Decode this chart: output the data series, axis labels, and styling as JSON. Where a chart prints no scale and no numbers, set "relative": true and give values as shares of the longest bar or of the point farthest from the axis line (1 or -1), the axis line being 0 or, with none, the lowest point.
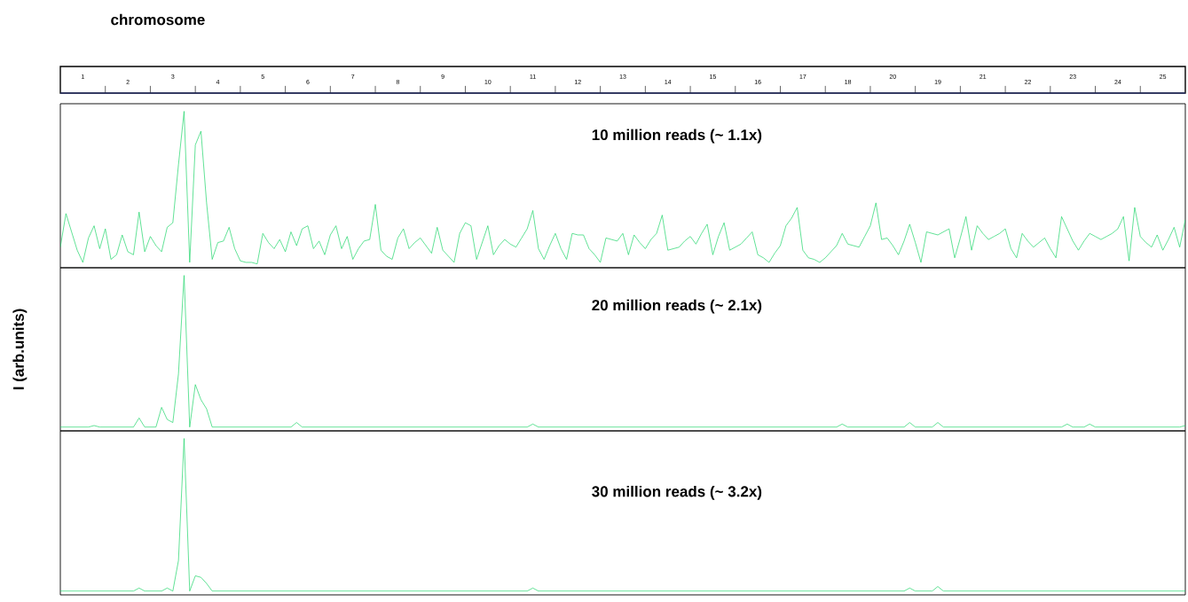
{
  "chart_data": [
    {
      "type": "other",
      "title": "chromosome",
      "annotations": [
        "1",
        "2",
        "3",
        "4",
        "5",
        "6",
        "7",
        "8",
        "9",
        "10",
        "11",
        "12",
        "13",
        "14",
        "15",
        "16",
        "17",
        "18",
        "20",
        "19",
        "21",
        "22",
        "23",
        "24",
        "25"
      ]
    },
    {
      "type": "line",
      "relative": true,
      "title": "10 million reads (~ 1.1x)",
      "marker": "none",
      "categories": [
        null,
        null,
        null,
        null,
        null,
        null,
        null,
        null,
        null,
        null,
        null,
        null,
        null,
        null,
        null,
        null,
        null,
        null,
        null,
        null,
        null,
        null,
        null,
        null,
        null,
        null,
        null,
        null,
        null,
        null,
        null,
        null,
        null,
        null,
        null,
        null,
        null,
        null,
        null,
        null,
        null,
        null,
        null,
        null,
        null,
        null,
        null,
        null,
        null,
        null,
        null,
        null,
        null,
        null,
        null,
        null,
        null,
        null,
        null,
        null,
        null,
        null,
        null,
        null,
        null,
        null,
        null,
        null,
        null,
        null,
        null,
        null,
        null,
        null,
        null,
        null,
        null,
        null,
        null,
        null,
        null,
        null,
        null,
        null,
        null,
        null,
        null,
        null,
        null,
        null,
        null,
        null,
        null,
        null,
        null,
        null,
        null,
        null,
        null,
        null,
        null,
        null,
        null,
        null,
        null,
        null,
        null,
        null,
        null,
        null,
        null,
        null,
        null,
        null,
        null,
        null,
        null,
        null,
        null,
        null,
        null,
        null,
        null,
        null,
        null,
        null,
        null,
        null,
        null,
        null,
        null,
        null,
        null,
        null,
        null,
        null,
        null,
        null,
        null,
        null,
        null,
        null,
        null,
        null,
        null,
        null,
        null,
        null,
        null,
        null,
        null,
        null,
        null,
        null,
        null,
        null,
        null,
        null,
        null,
        null,
        null,
        null,
        null,
        null,
        null,
        null,
        null,
        null,
        null,
        null,
        null,
        null,
        null,
        null,
        null,
        null,
        null,
        null,
        null,
        null,
        null,
        null,
        null,
        null,
        null,
        null,
        null,
        null,
        null,
        null,
        null,
        null,
        null,
        null,
        null,
        null,
        null,
        null,
        null,
        null,
        null
      ],
      "series": [
        {
          "color": "#1fd66a",
          "values": [
            0.11,
            0.33,
            0.21,
            0.09,
            0.01,
            0.17,
            0.25,
            0.1,
            0.23,
            0.03,
            0.06,
            0.19,
            0.08,
            0.06,
            0.34,
            0.08,
            0.18,
            0.12,
            0.08,
            0.24,
            0.27,
            0.65,
            1.0,
            0.01,
            0.78,
            0.87,
            0.4,
            0.03,
            0.14,
            0.15,
            0.24,
            0.1,
            0.02,
            0.01,
            0.01,
            0,
            0.2,
            0.14,
            0.1,
            0.16,
            0.08,
            0.21,
            0.12,
            0.23,
            0.25,
            0.1,
            0.15,
            0.06,
            0.19,
            0.25,
            0.1,
            0.18,
            0.03,
            0.1,
            0.15,
            0.16,
            0.39,
            0.09,
            0.05,
            0.03,
            0.17,
            0.23,
            0.1,
            0.14,
            0.17,
            0.12,
            0.07,
            0.24,
            0.09,
            0.05,
            0.01,
            0.2,
            0.27,
            0.25,
            0.03,
            0.14,
            0.25,
            0.06,
            0.12,
            0.16,
            0.13,
            0.11,
            0.17,
            0.23,
            0.35,
            0.1,
            0.03,
            0.12,
            0.2,
            0.1,
            0.03,
            0.2,
            0.19,
            0.19,
            0.1,
            0.06,
            0.01,
            0.17,
            0.16,
            0.15,
            0.2,
            0.06,
            0.19,
            0.14,
            0.1,
            0.16,
            0.2,
            0.32,
            0.09,
            0.1,
            0.11,
            0.15,
            0.18,
            0.13,
            0.2,
            0.26,
            0.06,
            0.18,
            0.27,
            0.09,
            0.11,
            0.13,
            0.17,
            0.21,
            0.06,
            0.04,
            0.01,
            0.07,
            0.12,
            0.25,
            0.3,
            0.37,
            0.09,
            0.04,
            0.03,
            0.01,
            0.04,
            0.08,
            0.12,
            0.2,
            0.13,
            0.12,
            0.11,
            0.18,
            0.25,
            0.4,
            0.16,
            0.17,
            0.12,
            0.06,
            0.15,
            0.26,
            0.14,
            0.01,
            0.21,
            0.2,
            0.19,
            0.21,
            0.23,
            0.04,
            0.17,
            0.31,
            0.09,
            0.25,
            0.2,
            0.16,
            0.18,
            0.2,
            0.23,
            0.1,
            0.04,
            0.2,
            0.15,
            0.11,
            0.14,
            0.17,
            0.1,
            0.04,
            0.31,
            0.23,
            0.15,
            0.09,
            0.15,
            0.2,
            0.18,
            0.16,
            0.18,
            0.2,
            0.23,
            0.31,
            0.02,
            0.37,
            0.18,
            0.14,
            0.11,
            0.19,
            0.09,
            0.16,
            0.24,
            0.11,
            0.29
          ]
        }
      ]
    },
    {
      "type": "line",
      "relative": true,
      "title": "20 million reads (~ 2.1x)",
      "ylabel": "I (arb.units)",
      "marker": "none",
      "categories": [
        null,
        null,
        null,
        null,
        null,
        null,
        null,
        null,
        null,
        null,
        null,
        null,
        null,
        null,
        null,
        null,
        null,
        null,
        null,
        null,
        null,
        null,
        null,
        null,
        null,
        null,
        null,
        null,
        null,
        null,
        null,
        null,
        null,
        null,
        null,
        null,
        null,
        null,
        null,
        null,
        null,
        null,
        null,
        null,
        null,
        null,
        null,
        null,
        null,
        null,
        null,
        null,
        null,
        null,
        null,
        null,
        null,
        null,
        null,
        null,
        null,
        null,
        null,
        null,
        null,
        null,
        null,
        null,
        null,
        null,
        null,
        null,
        null,
        null,
        null,
        null,
        null,
        null,
        null,
        null,
        null,
        null,
        null,
        null,
        null,
        null,
        null,
        null,
        null,
        null,
        null,
        null,
        null,
        null,
        null,
        null,
        null,
        null,
        null,
        null,
        null,
        null,
        null,
        null,
        null,
        null,
        null,
        null,
        null,
        null,
        null,
        null,
        null,
        null,
        null,
        null,
        null,
        null,
        null,
        null,
        null,
        null,
        null,
        null,
        null,
        null,
        null,
        null,
        null,
        null,
        null,
        null,
        null,
        null,
        null,
        null,
        null,
        null,
        null,
        null,
        null,
        null,
        null,
        null,
        null,
        null,
        null,
        null,
        null,
        null,
        null,
        null,
        null,
        null,
        null,
        null,
        null,
        null,
        null,
        null,
        null,
        null,
        null,
        null,
        null,
        null,
        null,
        null,
        null,
        null,
        null,
        null,
        null,
        null,
        null,
        null,
        null,
        null,
        null,
        null,
        null,
        null,
        null,
        null,
        null,
        null,
        null,
        null,
        null,
        null,
        null,
        null,
        null,
        null,
        null,
        null,
        null,
        null,
        null,
        null,
        null
      ],
      "series": [
        {
          "color": "#1fd66a",
          "values": [
            0,
            0,
            0,
            0,
            0,
            0,
            0.01,
            0,
            0,
            0,
            0,
            0,
            0,
            0,
            0.06,
            0,
            0,
            0,
            0.13,
            0.05,
            0.03,
            0.35,
            1.0,
            0,
            0.28,
            0.18,
            0.12,
            0,
            0,
            0,
            0,
            0,
            0,
            0,
            0,
            0,
            0,
            0,
            0,
            0,
            0,
            0,
            0.03,
            0,
            0,
            0,
            0,
            0,
            0,
            0,
            0,
            0,
            0,
            0,
            0,
            0,
            0,
            0,
            0,
            0,
            0,
            0,
            0,
            0,
            0,
            0,
            0,
            0,
            0,
            0,
            0,
            0,
            0,
            0,
            0,
            0,
            0,
            0,
            0,
            0,
            0,
            0,
            0,
            0,
            0.02,
            0,
            0,
            0,
            0,
            0,
            0,
            0,
            0,
            0,
            0,
            0,
            0,
            0,
            0,
            0,
            0,
            0,
            0,
            0,
            0,
            0,
            0,
            0,
            0,
            0,
            0,
            0,
            0,
            0,
            0,
            0,
            0,
            0,
            0,
            0,
            0,
            0,
            0,
            0,
            0,
            0,
            0,
            0,
            0,
            0,
            0,
            0,
            0,
            0,
            0,
            0,
            0,
            0,
            0,
            0.02,
            0,
            0,
            0,
            0,
            0,
            0,
            0,
            0,
            0,
            0,
            0,
            0.03,
            0,
            0,
            0,
            0,
            0.03,
            0,
            0,
            0,
            0,
            0,
            0,
            0,
            0,
            0,
            0,
            0,
            0,
            0,
            0,
            0,
            0,
            0,
            0,
            0,
            0,
            0,
            0,
            0.02,
            0,
            0,
            0,
            0.02,
            0,
            0,
            0,
            0,
            0,
            0,
            0,
            0,
            0,
            0,
            0,
            0,
            0,
            0,
            0,
            0,
            0.01
          ]
        }
      ]
    },
    {
      "type": "line",
      "relative": true,
      "title": "30 million reads (~ 3.2x)",
      "marker": "none",
      "categories": [
        null,
        null,
        null,
        null,
        null,
        null,
        null,
        null,
        null,
        null,
        null,
        null,
        null,
        null,
        null,
        null,
        null,
        null,
        null,
        null,
        null,
        null,
        null,
        null,
        null,
        null,
        null,
        null,
        null,
        null,
        null,
        null,
        null,
        null,
        null,
        null,
        null,
        null,
        null,
        null,
        null,
        null,
        null,
        null,
        null,
        null,
        null,
        null,
        null,
        null,
        null,
        null,
        null,
        null,
        null,
        null,
        null,
        null,
        null,
        null,
        null,
        null,
        null,
        null,
        null,
        null,
        null,
        null,
        null,
        null,
        null,
        null,
        null,
        null,
        null,
        null,
        null,
        null,
        null,
        null,
        null,
        null,
        null,
        null,
        null,
        null,
        null,
        null,
        null,
        null,
        null,
        null,
        null,
        null,
        null,
        null,
        null,
        null,
        null,
        null,
        null,
        null,
        null,
        null,
        null,
        null,
        null,
        null,
        null,
        null,
        null,
        null,
        null,
        null,
        null,
        null,
        null,
        null,
        null,
        null,
        null,
        null,
        null,
        null,
        null,
        null,
        null,
        null,
        null,
        null,
        null,
        null,
        null,
        null,
        null,
        null,
        null,
        null,
        null,
        null,
        null,
        null,
        null,
        null,
        null,
        null,
        null,
        null,
        null,
        null,
        null,
        null,
        null,
        null,
        null,
        null,
        null,
        null,
        null,
        null,
        null,
        null,
        null,
        null,
        null,
        null,
        null,
        null,
        null,
        null,
        null,
        null,
        null,
        null,
        null,
        null,
        null,
        null,
        null,
        null,
        null,
        null,
        null,
        null,
        null,
        null,
        null,
        null,
        null,
        null,
        null,
        null,
        null,
        null,
        null,
        null,
        null,
        null,
        null,
        null,
        null
      ],
      "series": [
        {
          "color": "#1fd66a",
          "values": [
            0,
            0,
            0,
            0,
            0,
            0,
            0,
            0,
            0,
            0,
            0,
            0,
            0,
            0,
            0.02,
            0,
            0,
            0,
            0,
            0.02,
            0,
            0.2,
            1.0,
            0,
            0.1,
            0.09,
            0.05,
            0,
            0,
            0,
            0,
            0,
            0,
            0,
            0,
            0,
            0,
            0,
            0,
            0,
            0,
            0,
            0,
            0,
            0,
            0,
            0,
            0,
            0,
            0,
            0,
            0,
            0,
            0,
            0,
            0,
            0,
            0,
            0,
            0,
            0,
            0,
            0,
            0,
            0,
            0,
            0,
            0,
            0,
            0,
            0,
            0,
            0,
            0,
            0,
            0,
            0,
            0,
            0,
            0,
            0,
            0,
            0,
            0,
            0.02,
            0,
            0,
            0,
            0,
            0,
            0,
            0,
            0,
            0,
            0,
            0,
            0,
            0,
            0,
            0,
            0,
            0,
            0,
            0,
            0,
            0,
            0,
            0,
            0,
            0,
            0,
            0,
            0,
            0,
            0,
            0,
            0,
            0,
            0,
            0,
            0,
            0,
            0,
            0,
            0,
            0,
            0,
            0,
            0,
            0,
            0,
            0,
            0,
            0,
            0,
            0,
            0,
            0,
            0,
            0,
            0,
            0,
            0,
            0,
            0,
            0,
            0,
            0,
            0,
            0,
            0,
            0.02,
            0,
            0,
            0,
            0,
            0.03,
            0,
            0,
            0,
            0,
            0,
            0,
            0,
            0,
            0,
            0,
            0,
            0,
            0,
            0,
            0,
            0,
            0,
            0,
            0,
            0,
            0,
            0,
            0,
            0,
            0,
            0,
            0,
            0,
            0,
            0,
            0,
            0,
            0,
            0,
            0,
            0,
            0,
            0,
            0,
            0,
            0,
            0,
            0,
            0
          ]
        }
      ]
    }
  ]
}
